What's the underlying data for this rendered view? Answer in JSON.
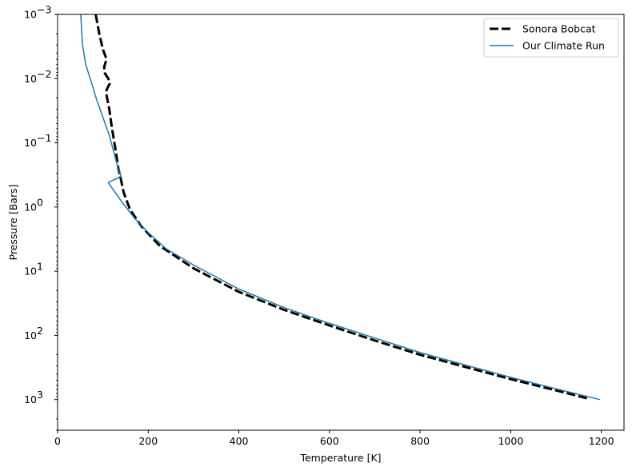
{
  "chart_data": {
    "type": "line",
    "title": "",
    "xlabel": "Temperature [K]",
    "ylabel": "Pressure [Bars]",
    "xlim": [
      0,
      1250
    ],
    "ylim": [
      3000,
      0.001
    ],
    "yscale": "log",
    "y_inverted": true,
    "grid": false,
    "legend_position": "top-right",
    "x_ticks": [
      {
        "value": 0,
        "label": "0"
      },
      {
        "value": 200,
        "label": "200"
      },
      {
        "value": 400,
        "label": "400"
      },
      {
        "value": 600,
        "label": "600"
      },
      {
        "value": 800,
        "label": "800"
      },
      {
        "value": 1000,
        "label": "1000"
      },
      {
        "value": 1200,
        "label": "1200"
      }
    ],
    "y_ticks": [
      {
        "value": 0.001,
        "base": "10",
        "exp": "−3"
      },
      {
        "value": 0.01,
        "base": "10",
        "exp": "−2"
      },
      {
        "value": 0.1,
        "base": "10",
        "exp": "−1"
      },
      {
        "value": 1,
        "base": "10",
        "exp": "0"
      },
      {
        "value": 10,
        "base": "10",
        "exp": "1"
      },
      {
        "value": 100,
        "base": "10",
        "exp": "2"
      },
      {
        "value": 1000,
        "base": "10",
        "exp": "3"
      }
    ],
    "series": [
      {
        "name": "Sonora Bobcat",
        "color": "#000000",
        "style": "dashed",
        "points": [
          [
            84,
            0.001
          ],
          [
            92,
            0.002
          ],
          [
            100,
            0.0035
          ],
          [
            108,
            0.005
          ],
          [
            103,
            0.0065
          ],
          [
            103,
            0.008
          ],
          [
            112,
            0.01
          ],
          [
            115,
            0.012
          ],
          [
            108,
            0.015
          ],
          [
            108,
            0.018
          ],
          [
            114,
            0.03
          ],
          [
            120,
            0.06
          ],
          [
            128,
            0.13
          ],
          [
            134,
            0.25
          ],
          [
            139,
            0.35
          ],
          [
            146,
            0.6
          ],
          [
            160,
            1.1
          ],
          [
            185,
            2.0
          ],
          [
            225,
            4.0
          ],
          [
            300,
            9.0
          ],
          [
            400,
            21
          ],
          [
            500,
            40
          ],
          [
            600,
            70
          ],
          [
            700,
            120
          ],
          [
            800,
            200
          ],
          [
            900,
            310
          ],
          [
            1000,
            480
          ],
          [
            1100,
            720
          ],
          [
            1170,
            960
          ]
        ]
      },
      {
        "name": "Our Climate Run",
        "color": "#1f77b4",
        "style": "solid",
        "points": [
          [
            51,
            0.001
          ],
          [
            55,
            0.003
          ],
          [
            62,
            0.006
          ],
          [
            72,
            0.01
          ],
          [
            85,
            0.02
          ],
          [
            100,
            0.04
          ],
          [
            115,
            0.08
          ],
          [
            125,
            0.15
          ],
          [
            133,
            0.24
          ],
          [
            140,
            0.33
          ],
          [
            131,
            0.36
          ],
          [
            116,
            0.4
          ],
          [
            112,
            0.42
          ],
          [
            140,
            0.8
          ],
          [
            170,
            1.5
          ],
          [
            200,
            2.5
          ],
          [
            240,
            4.5
          ],
          [
            300,
            8
          ],
          [
            400,
            19
          ],
          [
            500,
            37
          ],
          [
            600,
            65
          ],
          [
            700,
            110
          ],
          [
            800,
            185
          ],
          [
            900,
            290
          ],
          [
            1000,
            450
          ],
          [
            1100,
            680
          ],
          [
            1197,
            1000
          ]
        ]
      }
    ]
  }
}
